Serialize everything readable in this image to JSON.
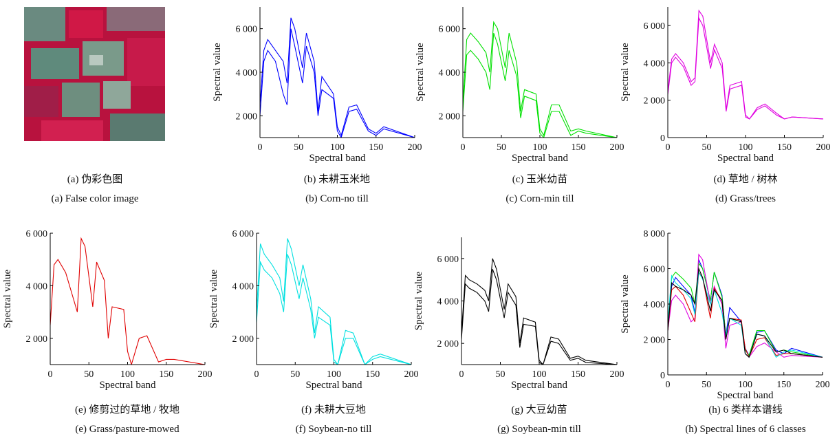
{
  "chart_data": [
    {
      "type": "image",
      "caption_zh": "(a) 伪彩色图",
      "caption_en": "(a) False color image"
    },
    {
      "type": "line",
      "caption_zh": "(b) 未耕玉米地",
      "caption_en": "(b) Corn-no till",
      "xlabel": "Spectral band",
      "ylabel": "Spectral value",
      "x": [
        0,
        5,
        10,
        20,
        30,
        35,
        40,
        45,
        55,
        60,
        70,
        75,
        80,
        95,
        100,
        105,
        115,
        125,
        140,
        150,
        160,
        200
      ],
      "xlim": [
        0,
        200
      ],
      "xticks": [
        0,
        50,
        100,
        150,
        200
      ],
      "ylim": [
        1000,
        7000
      ],
      "yticks": [
        {
          "value": 2000,
          "label": "2 000"
        },
        {
          "value": 4000,
          "label": "4 000"
        },
        {
          "value": 6000,
          "label": "6 000"
        }
      ],
      "series": [
        {
          "color": "#0000ff",
          "values": [
            2500,
            5000,
            5500,
            5000,
            4500,
            3500,
            6500,
            6000,
            4200,
            5800,
            4500,
            2200,
            3800,
            3000,
            1500,
            1100,
            2400,
            2500,
            1400,
            1200,
            1500,
            1000
          ]
        },
        {
          "color": "#0000ff",
          "values": [
            2000,
            4500,
            5000,
            4500,
            3000,
            2500,
            6000,
            5200,
            3500,
            5200,
            4000,
            2000,
            3200,
            2800,
            1300,
            1000,
            2200,
            2300,
            1300,
            1100,
            1400,
            1000
          ]
        }
      ]
    },
    {
      "type": "line",
      "caption_zh": "(c) 玉米幼苗",
      "caption_en": "(c) Corn-min till",
      "xlabel": "Spectral band",
      "ylabel": "Spectral value",
      "x": [
        0,
        5,
        10,
        20,
        30,
        35,
        40,
        45,
        55,
        60,
        70,
        75,
        80,
        95,
        100,
        105,
        115,
        125,
        140,
        150,
        160,
        200
      ],
      "xlim": [
        0,
        200
      ],
      "xticks": [
        0,
        50,
        100,
        150,
        200
      ],
      "ylim": [
        1000,
        7000
      ],
      "yticks": [
        {
          "value": 2000,
          "label": "2 000"
        },
        {
          "value": 4000,
          "label": "4 000"
        },
        {
          "value": 6000,
          "label": "6 000"
        }
      ],
      "series": [
        {
          "color": "#00e000",
          "values": [
            2600,
            5500,
            5800,
            5400,
            4900,
            4000,
            6300,
            6000,
            4200,
            5800,
            4400,
            2200,
            3200,
            3000,
            1400,
            1100,
            2500,
            2500,
            1300,
            1400,
            1300,
            1000
          ]
        },
        {
          "color": "#00e000",
          "values": [
            2200,
            4800,
            5000,
            4600,
            4000,
            3200,
            5800,
            5300,
            3600,
            5000,
            3800,
            1900,
            2900,
            2700,
            1200,
            1000,
            2200,
            2200,
            1100,
            1300,
            1200,
            1000
          ]
        }
      ]
    },
    {
      "type": "line",
      "caption_zh": "(d) 草地 / 树林",
      "caption_en": "(d) Grass/trees",
      "xlabel": "Spectral band",
      "ylabel": "Spectral value",
      "x": [
        0,
        5,
        10,
        20,
        30,
        35,
        40,
        45,
        55,
        60,
        70,
        75,
        80,
        95,
        100,
        105,
        115,
        125,
        140,
        150,
        160,
        200
      ],
      "xlim": [
        0,
        200
      ],
      "xticks": [
        0,
        50,
        100,
        150,
        200
      ],
      "ylim": [
        0,
        7000
      ],
      "yticks": [
        0,
        {
          "value": 2000,
          "label": "2 000"
        },
        {
          "value": 4000,
          "label": "4 000"
        },
        {
          "value": 6000,
          "label": "6 000"
        }
      ],
      "series": [
        {
          "color": "#e000e0",
          "values": [
            2500,
            4200,
            4500,
            4000,
            3000,
            3200,
            6800,
            6500,
            4000,
            5000,
            4000,
            1500,
            2800,
            3000,
            1200,
            1000,
            1600,
            1800,
            1300,
            1000,
            1100,
            1000
          ]
        },
        {
          "color": "#e000e0",
          "values": [
            2300,
            4000,
            4300,
            3800,
            2800,
            3000,
            6400,
            6000,
            3700,
            4700,
            3700,
            1400,
            2600,
            2800,
            1100,
            1000,
            1500,
            1700,
            1200,
            1000,
            1100,
            1000
          ]
        }
      ]
    },
    {
      "type": "line",
      "caption_zh": "(e) 修剪过的草地 / 牧地",
      "caption_en": "(e) Grass/pasture-mowed",
      "xlabel": "Spectral band",
      "ylabel": "Spectral value",
      "x": [
        0,
        5,
        10,
        20,
        30,
        35,
        40,
        45,
        55,
        60,
        70,
        75,
        80,
        95,
        100,
        105,
        115,
        125,
        140,
        150,
        160,
        200
      ],
      "xlim": [
        0,
        200
      ],
      "xticks": [
        0,
        50,
        100,
        150,
        200
      ],
      "ylim": [
        1000,
        6000
      ],
      "yticks": [
        {
          "value": 2000,
          "label": "2 000"
        },
        {
          "value": 4000,
          "label": "4 000"
        },
        {
          "value": 6000,
          "label": "6 000"
        }
      ],
      "series": [
        {
          "color": "#e00000",
          "values": [
            2500,
            4800,
            5000,
            4500,
            3500,
            3000,
            5800,
            5500,
            3200,
            4900,
            4200,
            2000,
            3200,
            3100,
            1500,
            1000,
            2000,
            2100,
            1100,
            1200,
            1200,
            1000
          ]
        }
      ]
    },
    {
      "type": "line",
      "caption_zh": "(f) 未耕大豆地",
      "caption_en": "(f) Soybean-no till",
      "xlabel": "Spectral band",
      "ylabel": "Spectral value",
      "x": [
        0,
        5,
        10,
        20,
        30,
        35,
        40,
        45,
        55,
        60,
        70,
        75,
        80,
        95,
        100,
        105,
        115,
        125,
        140,
        150,
        160,
        200
      ],
      "xlim": [
        0,
        200
      ],
      "xticks": [
        0,
        50,
        100,
        150,
        200
      ],
      "ylim": [
        1000,
        6000
      ],
      "yticks": [
        {
          "value": 2000,
          "label": "2 000"
        },
        {
          "value": 4000,
          "label": "4 000"
        },
        {
          "value": 6000,
          "label": "6 000"
        }
      ],
      "series": [
        {
          "color": "#00e0e0",
          "values": [
            3000,
            5600,
            5200,
            4800,
            4300,
            3400,
            5800,
            5400,
            4000,
            4800,
            3500,
            2200,
            3200,
            2800,
            1200,
            1000,
            2300,
            2200,
            1000,
            1300,
            1400,
            1000
          ]
        },
        {
          "color": "#00e0e0",
          "values": [
            2600,
            4900,
            4600,
            4300,
            3700,
            3000,
            5200,
            4800,
            3500,
            4300,
            3100,
            2000,
            2800,
            2500,
            1100,
            1000,
            2000,
            2000,
            1000,
            1200,
            1300,
            1000
          ]
        }
      ]
    },
    {
      "type": "line",
      "caption_zh": "(g) 大豆幼苗",
      "caption_en": "(g) Soybean-min till",
      "xlabel": "Spectral band",
      "ylabel": "Spectral value",
      "x": [
        0,
        5,
        10,
        20,
        30,
        35,
        40,
        45,
        55,
        60,
        70,
        75,
        80,
        95,
        100,
        105,
        115,
        125,
        140,
        150,
        160,
        200
      ],
      "xlim": [
        0,
        200
      ],
      "xticks": [
        0,
        50,
        100,
        150,
        200
      ],
      "ylim": [
        1000,
        7000
      ],
      "yticks": [
        {
          "value": 2000,
          "label": "2 000"
        },
        {
          "value": 4000,
          "label": "4 000"
        },
        {
          "value": 6000,
          "label": "6 000"
        }
      ],
      "series": [
        {
          "color": "#000000",
          "values": [
            2500,
            5200,
            5000,
            4800,
            4500,
            4000,
            6000,
            5500,
            3600,
            4800,
            4200,
            2000,
            3200,
            3000,
            1200,
            1000,
            2300,
            2200,
            1300,
            1400,
            1200,
            1000
          ]
        },
        {
          "color": "#000000",
          "values": [
            2200,
            4800,
            4600,
            4400,
            4000,
            3500,
            5500,
            5000,
            3200,
            4400,
            3800,
            1800,
            2900,
            2800,
            1100,
            1000,
            2100,
            2000,
            1200,
            1300,
            1100,
            1000
          ]
        }
      ]
    },
    {
      "type": "line",
      "caption_zh": "(h) 6 类样本谱线",
      "caption_en": "(h) Spectral lines of 6 classes",
      "xlabel": "Spectral band",
      "ylabel": "Spectral value",
      "x": [
        0,
        5,
        10,
        20,
        30,
        35,
        40,
        45,
        55,
        60,
        70,
        75,
        80,
        95,
        100,
        105,
        115,
        125,
        140,
        150,
        160,
        200
      ],
      "xlim": [
        0,
        200
      ],
      "xticks": [
        0,
        50,
        100,
        150,
        200
      ],
      "ylim": [
        0,
        8000
      ],
      "yticks": [
        0,
        {
          "value": 2000,
          "label": "2 000"
        },
        {
          "value": 4000,
          "label": "4 000"
        },
        {
          "value": 6000,
          "label": "6 000"
        },
        {
          "value": 8000,
          "label": "8 000"
        }
      ],
      "series": [
        {
          "color": "#0000ff",
          "values": [
            2500,
            5000,
            5500,
            5000,
            4500,
            3500,
            6500,
            6000,
            4200,
            5800,
            4500,
            2200,
            3800,
            3000,
            1500,
            1100,
            2400,
            2500,
            1400,
            1200,
            1500,
            1000
          ]
        },
        {
          "color": "#00e000",
          "values": [
            2600,
            5500,
            5800,
            5400,
            4900,
            4000,
            6300,
            6000,
            4200,
            5800,
            4400,
            2200,
            3200,
            3000,
            1400,
            1100,
            2500,
            2500,
            1300,
            1400,
            1300,
            1000
          ]
        },
        {
          "color": "#e000e0",
          "values": [
            2500,
            4200,
            4500,
            4000,
            3000,
            3200,
            6800,
            6500,
            4000,
            5000,
            4000,
            1500,
            2800,
            3000,
            1200,
            1000,
            1600,
            1800,
            1300,
            1000,
            1100,
            1000
          ]
        },
        {
          "color": "#e00000",
          "values": [
            2500,
            4800,
            5000,
            4500,
            3500,
            3000,
            5800,
            5500,
            3200,
            4900,
            4200,
            2000,
            3200,
            3100,
            1500,
            1000,
            2000,
            2100,
            1100,
            1200,
            1200,
            1000
          ]
        },
        {
          "color": "#00e0e0",
          "values": [
            3000,
            5600,
            5200,
            4800,
            4300,
            3400,
            5800,
            5400,
            4000,
            4800,
            3500,
            2200,
            3200,
            2800,
            1200,
            1000,
            2300,
            2200,
            1000,
            1300,
            1400,
            1000
          ]
        },
        {
          "color": "#000000",
          "values": [
            2500,
            5200,
            5000,
            4800,
            4500,
            4000,
            6000,
            5500,
            3600,
            4800,
            4200,
            2000,
            3200,
            3000,
            1200,
            1000,
            2300,
            2200,
            1300,
            1400,
            1200,
            1000
          ]
        }
      ]
    }
  ]
}
